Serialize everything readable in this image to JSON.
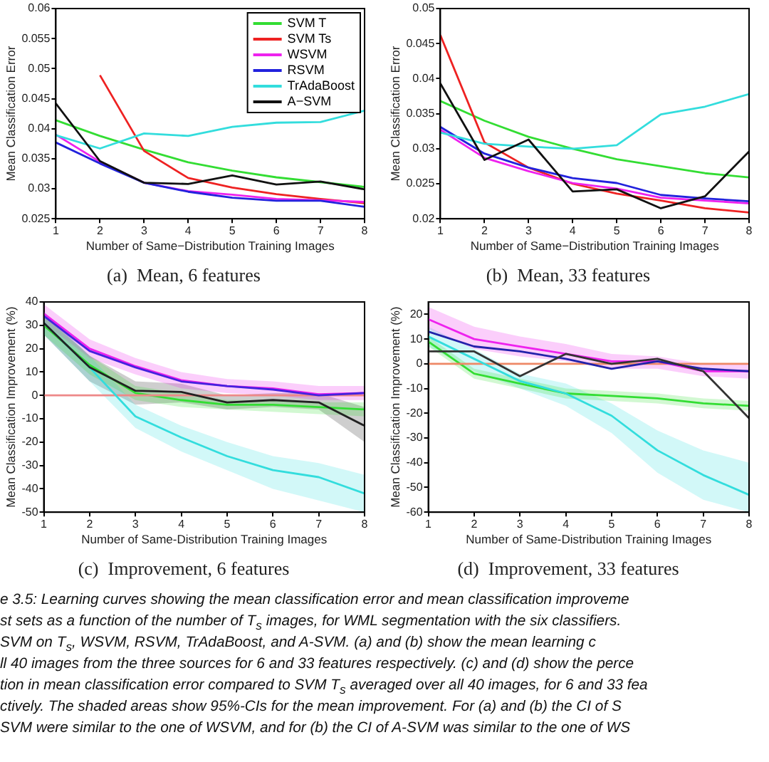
{
  "chart_data": [
    {
      "type": "line",
      "title": "(a)  Mean, 6 features",
      "xlabel": "Number of Same−Distribution Training Images",
      "ylabel": "Mean Classification Error",
      "x": [
        1,
        2,
        3,
        4,
        5,
        6,
        7,
        8
      ],
      "xlim": [
        1,
        8
      ],
      "xticks": [
        1,
        2,
        3,
        4,
        5,
        6,
        7,
        8
      ],
      "ylim": [
        0.025,
        0.06
      ],
      "yticks": [
        0.025,
        0.03,
        0.035,
        0.04,
        0.045,
        0.05,
        0.055,
        0.06
      ],
      "legend": "top right",
      "series": [
        {
          "name": "SVM T",
          "color": "#33dd33",
          "values": [
            0.0414,
            0.0388,
            0.0365,
            0.0344,
            0.033,
            0.0319,
            0.0311,
            0.0303
          ]
        },
        {
          "name": "SVM Ts",
          "color": "#ee2222",
          "values": [
            null,
            0.0489,
            0.0363,
            0.0318,
            0.0302,
            0.0291,
            0.0283,
            0.0276
          ]
        },
        {
          "name": "WSVM",
          "color": "#ee22ee",
          "values": [
            0.039,
            0.0345,
            0.031,
            0.0296,
            0.029,
            0.0283,
            0.0281,
            0.0278
          ]
        },
        {
          "name": "RSVM",
          "color": "#2222dd",
          "values": [
            0.0377,
            0.0342,
            0.031,
            0.0295,
            0.0285,
            0.028,
            0.028,
            0.027
          ]
        },
        {
          "name": "TrAdaBoost",
          "color": "#33dddd",
          "values": [
            0.0389,
            0.0367,
            0.0392,
            0.0388,
            0.0403,
            0.041,
            0.0411,
            0.043
          ]
        },
        {
          "name": "A−SVM",
          "color": "#111111",
          "values": [
            0.0442,
            0.0346,
            0.031,
            0.0308,
            0.0322,
            0.0307,
            0.0312,
            0.0299
          ]
        }
      ]
    },
    {
      "type": "line",
      "title": "(b)  Mean, 33 features",
      "xlabel": "Number of Same−Distribution Training Images",
      "ylabel": "Mean Classification Error",
      "x": [
        1,
        2,
        3,
        4,
        5,
        6,
        7,
        8
      ],
      "xlim": [
        1,
        8
      ],
      "xticks": [
        1,
        2,
        3,
        4,
        5,
        6,
        7,
        8
      ],
      "ylim": [
        0.02,
        0.05
      ],
      "yticks": [
        0.02,
        0.025,
        0.03,
        0.035,
        0.04,
        0.045,
        0.05
      ],
      "series": [
        {
          "color": "#33dd33",
          "values": [
            0.0368,
            0.034,
            0.0317,
            0.03,
            0.0285,
            0.0275,
            0.0265,
            0.0259
          ]
        },
        {
          "color": "#ee2222",
          "values": [
            0.0462,
            0.0309,
            0.0273,
            0.025,
            0.0236,
            0.0226,
            0.0215,
            0.0209
          ]
        },
        {
          "color": "#ee22ee",
          "values": [
            0.0327,
            0.0287,
            0.0268,
            0.0251,
            0.0243,
            0.023,
            0.0226,
            0.0222
          ]
        },
        {
          "color": "#2222dd",
          "values": [
            0.0331,
            0.0293,
            0.0273,
            0.0258,
            0.0251,
            0.0234,
            0.0229,
            0.0225
          ]
        },
        {
          "color": "#33dddd",
          "values": [
            0.0323,
            0.0307,
            0.0303,
            0.03,
            0.0305,
            0.0349,
            0.036,
            0.0378
          ]
        },
        {
          "color": "#111111",
          "values": [
            0.0393,
            0.0284,
            0.0313,
            0.0239,
            0.0242,
            0.0215,
            0.0232,
            0.0296
          ]
        }
      ]
    },
    {
      "type": "line",
      "title": "(c)  Improvement, 6 features",
      "xlabel": "Number of Same-Distribution Training Images",
      "ylabel": "Mean Classification Improvement (%)",
      "x": [
        1,
        2,
        3,
        4,
        5,
        6,
        7,
        8
      ],
      "xlim": [
        1,
        8
      ],
      "xticks": [
        1,
        2,
        3,
        4,
        5,
        6,
        7,
        8
      ],
      "ylim": [
        -50,
        40
      ],
      "yticks": [
        -50,
        -40,
        -30,
        -20,
        -10,
        0,
        10,
        20,
        30,
        40
      ],
      "series": [
        {
          "color": "#33dd33",
          "values": [
            30,
            13,
            1,
            -2,
            -4,
            -4,
            -5,
            -6
          ],
          "lower": [
            26,
            9,
            -2,
            -5,
            -6,
            -7,
            -8,
            -9
          ],
          "upper": [
            34,
            17,
            4,
            1,
            -2,
            -2,
            -3,
            -3
          ]
        },
        {
          "color": "#ee8888",
          "values": [
            0,
            0,
            0,
            0,
            0,
            0,
            0,
            0
          ]
        },
        {
          "color": "#ee22ee",
          "values": [
            35,
            20,
            12.5,
            6.5,
            4,
            3,
            0.5,
            1
          ],
          "lower": [
            31,
            16,
            9,
            3,
            1,
            0,
            -2,
            -2
          ],
          "upper": [
            39,
            24,
            16,
            10,
            7,
            6,
            4,
            4
          ]
        },
        {
          "color": "#4422dd",
          "values": [
            34,
            19,
            12,
            6,
            4,
            2.5,
            0,
            1
          ]
        },
        {
          "color": "#33dddd",
          "values": [
            31,
            12,
            -9,
            -18,
            -26,
            -32,
            -35,
            -42
          ],
          "lower": [
            26,
            6,
            -14,
            -24,
            -32,
            -40,
            -45,
            -50
          ],
          "upper": [
            36,
            17,
            -4,
            -13,
            -20,
            -26,
            -29,
            -34
          ]
        },
        {
          "color": "#222222",
          "values": [
            31,
            12,
            2,
            1.5,
            -3,
            -2,
            -3,
            -13
          ],
          "lower": [
            26,
            6,
            -4,
            -3,
            -6,
            -5,
            -6,
            -20
          ],
          "upper": [
            35,
            17,
            6,
            5,
            0,
            1,
            1,
            -5
          ]
        }
      ]
    },
    {
      "type": "line",
      "title": "(d)  Improvement, 33 features",
      "xlabel": "Number of Same-Distribution Training Images",
      "ylabel": "Mean Classification Improvement (%)",
      "x": [
        1,
        2,
        3,
        4,
        5,
        6,
        7,
        8
      ],
      "xlim": [
        1,
        8
      ],
      "xticks": [
        1,
        2,
        3,
        4,
        5,
        6,
        7,
        8
      ],
      "ylim": [
        -60,
        25
      ],
      "yticks": [
        -60,
        -50,
        -40,
        -30,
        -20,
        -10,
        0,
        10,
        20
      ],
      "series": [
        {
          "color": "#33dd33",
          "values": [
            9,
            -4,
            -8,
            -12,
            -13,
            -14,
            -16,
            -17
          ],
          "lower": [
            7,
            -6,
            -10,
            -14,
            -15,
            -16,
            -18,
            -19
          ],
          "upper": [
            11,
            -2,
            -6,
            -10,
            -11,
            -12,
            -14,
            -15
          ]
        },
        {
          "color": "#ee8866",
          "values": [
            0,
            0,
            0,
            0,
            0,
            0,
            0,
            0
          ]
        },
        {
          "color": "#ee22ee",
          "values": [
            18,
            10,
            7,
            4,
            1,
            1,
            -3,
            -3
          ],
          "lower": [
            14,
            6,
            3,
            1,
            -2,
            -2,
            -5,
            -6
          ],
          "upper": [
            23,
            15,
            11,
            8,
            4,
            3,
            0,
            0
          ]
        },
        {
          "color": "#2222aa",
          "values": [
            13,
            7,
            5,
            2,
            -2,
            1,
            -2,
            -3
          ]
        },
        {
          "color": "#33dddd",
          "values": [
            11,
            2,
            -7,
            -12,
            -21,
            -35,
            -45,
            -53
          ],
          "lower": [
            7,
            -3,
            -10,
            -17,
            -28,
            -44,
            -55,
            -60
          ],
          "upper": [
            15,
            6,
            -4,
            -8,
            -16,
            -27,
            -35,
            -40
          ]
        },
        {
          "color": "#333333",
          "values": [
            5,
            5,
            -5,
            4,
            0,
            2,
            -3,
            -22
          ]
        }
      ]
    },
    {
      "type": "other",
      "annotations": [
        "e 3.5: Learning curves showing the mean classification error and mean classification improveme",
        "st sets as a function of the number of T$_{s}$ images, for WML segmentation with the six classifiers.",
        "SVM on T$_{s}$, WSVM, RSVM, TrAdaBoost, and A-SVM. (a) and (b) show the mean learning c",
        "ll 40 images from the three sources for 6 and 33 features respectively. (c) and (d) show the perce",
        "tion in mean classification error compared to SVM T$_{s}$ averaged over all 40 images, for 6 and 33 fea",
        "ctively. The shaded areas show 95%-CIs for the mean improvement. For (a) and (b) the CI of S",
        "SVM were similar to the one of WSVM, and for (b) the CI of A-SVM was similar to the one of WS"
      ]
    }
  ]
}
